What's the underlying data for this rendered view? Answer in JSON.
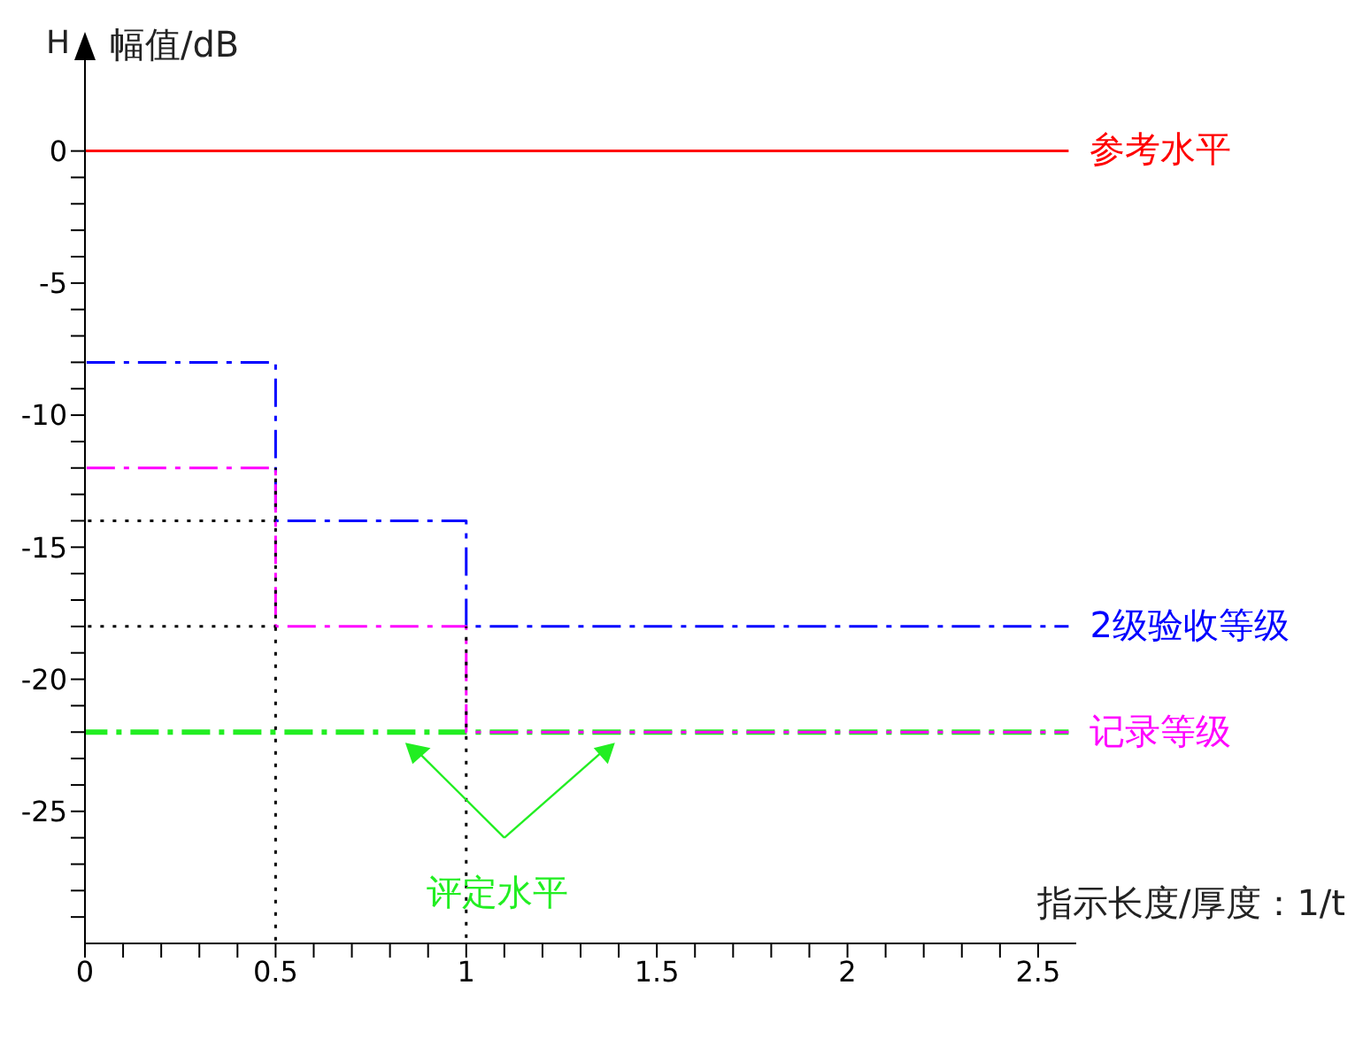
{
  "chart_data": {
    "type": "step",
    "xlabel": "指示长度/厚度：1/t",
    "ylabel": "幅值/dB",
    "annotations": [
      "H"
    ],
    "xlim": [
      0,
      2.6
    ],
    "ylim": [
      -30,
      2.5
    ],
    "xticks": [
      0,
      {
        "value": 0.1,
        "label": null
      },
      {
        "value": 0.2,
        "label": null
      },
      {
        "value": 0.3,
        "label": null
      },
      {
        "value": 0.4,
        "label": null
      },
      0.5,
      {
        "value": 0.6,
        "label": null
      },
      {
        "value": 0.7,
        "label": null
      },
      {
        "value": 0.8,
        "label": null
      },
      {
        "value": 0.9,
        "label": null
      },
      1,
      {
        "value": 1.1,
        "label": null
      },
      {
        "value": 1.2,
        "label": null
      },
      {
        "value": 1.3,
        "label": null
      },
      {
        "value": 1.4,
        "label": null
      },
      1.5,
      {
        "value": 1.6,
        "label": null
      },
      {
        "value": 1.7,
        "label": null
      },
      {
        "value": 1.8,
        "label": null
      },
      {
        "value": 1.9,
        "label": null
      },
      2,
      {
        "value": 2.1,
        "label": null
      },
      {
        "value": 2.2,
        "label": null
      },
      {
        "value": 2.3,
        "label": null
      },
      {
        "value": 2.4,
        "label": null
      },
      2.5
    ],
    "yticks": [
      0,
      {
        "value": -1,
        "label": null
      },
      {
        "value": -2,
        "label": null
      },
      {
        "value": -3,
        "label": null
      },
      {
        "value": -4,
        "label": null
      },
      -5,
      {
        "value": -6,
        "label": null
      },
      {
        "value": -7,
        "label": null
      },
      {
        "value": -8,
        "label": null
      },
      {
        "value": -9,
        "label": null
      },
      -10,
      {
        "value": -11,
        "label": null
      },
      {
        "value": -12,
        "label": null
      },
      {
        "value": -13,
        "label": null
      },
      {
        "value": -14,
        "label": null
      },
      -15,
      {
        "value": -16,
        "label": null
      },
      {
        "value": -17,
        "label": null
      },
      {
        "value": -18,
        "label": null
      },
      {
        "value": -19,
        "label": null
      },
      -20,
      {
        "value": -21,
        "label": null
      },
      {
        "value": -22,
        "label": null
      },
      {
        "value": -23,
        "label": null
      },
      {
        "value": -24,
        "label": null
      },
      -25,
      {
        "value": -26,
        "label": null
      },
      {
        "value": -27,
        "label": null
      },
      {
        "value": -28,
        "label": null
      },
      {
        "value": -29,
        "label": null
      }
    ],
    "grid": false,
    "legend": false,
    "marker": "none",
    "series": [
      {
        "name": "参考水平",
        "color": "#ff0000",
        "line_style": "solid",
        "x": [
          0,
          2.58
        ],
        "values": [
          0,
          0
        ]
      },
      {
        "name": "2级验收等级",
        "color": "#0000ff",
        "line_style": "dashed",
        "x": [
          0,
          0.5,
          1,
          2.58
        ],
        "values": [
          -8,
          -14,
          -18,
          -18
        ]
      },
      {
        "name": "记录等级",
        "color": "#ff00ff",
        "line_style": "dashed",
        "x": [
          0,
          0.5,
          1,
          2.58
        ],
        "values": [
          -12,
          -18,
          -22,
          -22
        ]
      },
      {
        "name": "评定水平",
        "color": "#22ee22",
        "line_style": "dashed",
        "x": [
          0,
          2.58
        ],
        "values": [
          -22,
          -22
        ]
      },
      {
        "color": "#000000",
        "line_style": "dotted",
        "x": [
          0,
          0.5
        ],
        "values": [
          -14,
          -14
        ]
      },
      {
        "color": "#000000",
        "line_style": "dotted",
        "x": [
          0,
          0.5
        ],
        "values": [
          -18,
          -18
        ]
      },
      {
        "color": "#000000",
        "line_style": "dotted",
        "x": [
          0.5,
          0.5
        ],
        "values": [
          -30,
          -12
        ]
      },
      {
        "color": "#000000",
        "line_style": "dotted",
        "x": [
          1,
          1
        ],
        "values": [
          -30,
          -18
        ]
      }
    ]
  }
}
